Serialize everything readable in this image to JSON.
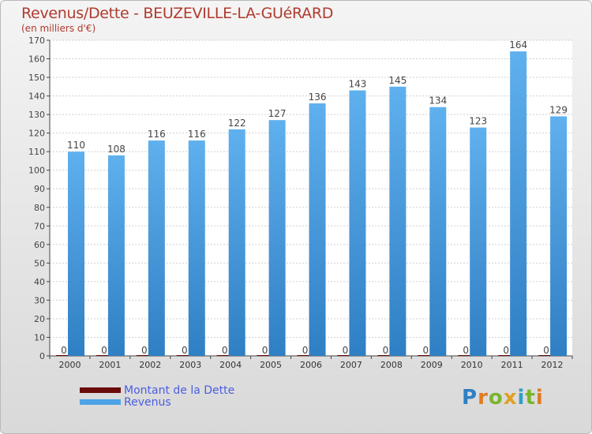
{
  "header": {
    "title": "Revenus/Dette - BEUZEVILLE-LA-GUéRARD",
    "subtitle": "(en milliers d'€)"
  },
  "legend": {
    "items": [
      {
        "label": "Montant de la Dette",
        "color": "#6b0a0a"
      },
      {
        "label": "Revenus",
        "color": "#4da3e6"
      }
    ]
  },
  "logo": {
    "text": "Proxiti",
    "letters": [
      {
        "ch": "P",
        "color": "#2f7fc4"
      },
      {
        "ch": "r",
        "color": "#e07b20"
      },
      {
        "ch": "o",
        "color": "#7ab52d"
      },
      {
        "ch": "x",
        "color": "#e0a020"
      },
      {
        "ch": "i",
        "color": "#2f9fc4"
      },
      {
        "ch": "t",
        "color": "#7ab52d"
      },
      {
        "ch": "i",
        "color": "#e07b20"
      }
    ]
  },
  "chart_data": {
    "type": "bar",
    "title": "Revenus/Dette - BEUZEVILLE-LA-GUéRARD",
    "subtitle": "(en milliers d'€)",
    "categories": [
      "2000",
      "2001",
      "2002",
      "2003",
      "2004",
      "2005",
      "2006",
      "2007",
      "2008",
      "2009",
      "2010",
      "2011",
      "2012"
    ],
    "series": [
      {
        "name": "Montant de la Dette",
        "color": "#6b0a0a",
        "values": [
          0,
          0,
          0,
          0,
          0,
          0,
          0,
          0,
          0,
          0,
          0,
          0,
          0
        ]
      },
      {
        "name": "Revenus",
        "color": "#4da3e6",
        "values": [
          110,
          108,
          116,
          116,
          122,
          127,
          136,
          143,
          145,
          134,
          123,
          164,
          129
        ]
      }
    ],
    "ylim": [
      0,
      170
    ],
    "yticks": [
      0,
      10,
      20,
      30,
      40,
      50,
      60,
      70,
      80,
      90,
      100,
      110,
      120,
      130,
      140,
      150,
      160,
      170
    ],
    "grid": true,
    "legend_position": "bottom-left"
  }
}
